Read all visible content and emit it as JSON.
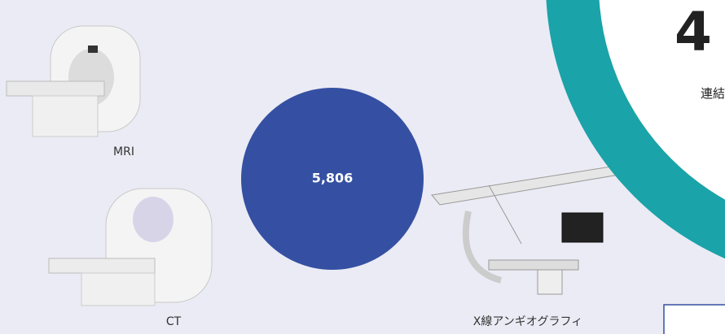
{
  "metric": {
    "value_label": "5,806"
  },
  "equipment": [
    {
      "label": "MRI"
    },
    {
      "label": "CT"
    },
    {
      "label": "X線アンギオグラフィ"
    }
  ],
  "highlight": {
    "number": "4",
    "caption": "連結"
  }
}
